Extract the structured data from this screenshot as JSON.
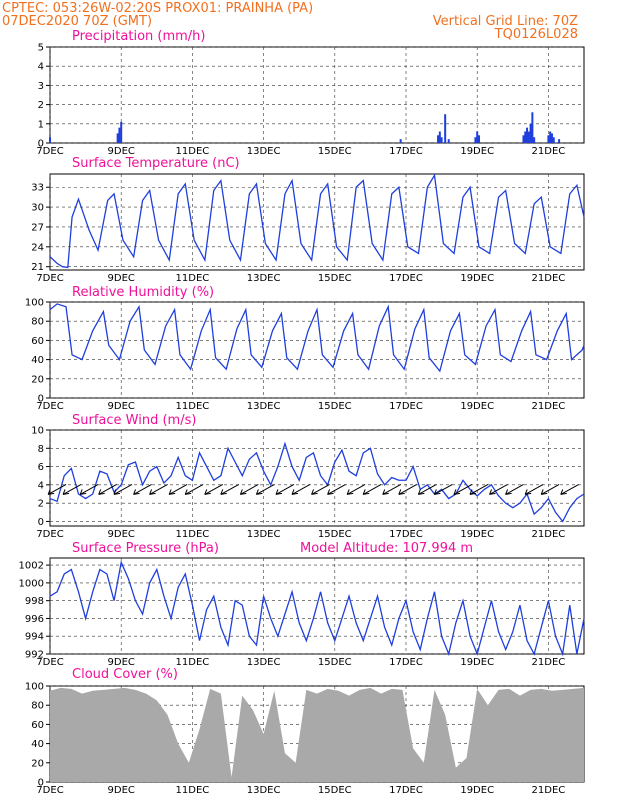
{
  "header": {
    "line1": "CPTEC:   053:26W-02:20S   PROX01: PRAINHA (PA)",
    "line2": "07DEC2020 70Z (GMT)",
    "grid_note": "Vertical Grid Line: 70Z",
    "code": "TQ0126L028"
  },
  "colors": {
    "header": "#f07020",
    "panel_title": "#ee1199",
    "series": "#1f3fdd",
    "cloud": "#a9a9a9",
    "axis": "#000000"
  },
  "x_axis": {
    "day_labels": [
      "7DEC",
      "9DEC",
      "11DEC",
      "13DEC",
      "15DEC",
      "17DEC",
      "19DEC",
      "21DEC"
    ],
    "day_values": [
      7,
      9,
      11,
      13,
      15,
      17,
      19,
      21
    ],
    "range": [
      7,
      22
    ]
  },
  "chart_data": [
    {
      "type": "bar",
      "title": "Precipitation (mm/h)",
      "ylim": [
        0,
        5
      ],
      "yticks": [
        0,
        1,
        2,
        3,
        4,
        5
      ],
      "x": [
        7.0,
        8.9,
        8.95,
        9.0,
        16.85,
        17.9,
        17.95,
        18.0,
        18.1,
        18.2,
        18.95,
        19.0,
        19.05,
        20.3,
        20.35,
        20.4,
        20.45,
        20.5,
        20.55,
        20.6,
        21.0,
        21.05,
        21.1,
        21.15,
        21.3
      ],
      "values": [
        0.3,
        0.5,
        0.8,
        1.1,
        0.2,
        0.4,
        0.6,
        0.3,
        1.5,
        0.2,
        0.3,
        0.6,
        0.4,
        0.4,
        0.6,
        0.8,
        0.6,
        1.0,
        1.6,
        0.3,
        0.4,
        0.6,
        0.5,
        0.3,
        0.2
      ]
    },
    {
      "type": "line",
      "title": "Surface Temperature (nC)",
      "ylim": [
        20.5,
        35
      ],
      "yticks": [
        21,
        24,
        27,
        30,
        33
      ],
      "x": [
        7.0,
        7.2,
        7.35,
        7.5,
        7.62,
        7.8,
        8.1,
        8.35,
        8.62,
        8.8,
        9.05,
        9.35,
        9.6,
        9.8,
        10.05,
        10.35,
        10.6,
        10.8,
        11.05,
        11.35,
        11.6,
        11.8,
        12.05,
        12.35,
        12.6,
        12.8,
        13.05,
        13.35,
        13.6,
        13.8,
        14.05,
        14.35,
        14.6,
        14.8,
        15.05,
        15.35,
        15.6,
        15.8,
        16.05,
        16.35,
        16.6,
        16.8,
        17.05,
        17.35,
        17.6,
        17.8,
        18.05,
        18.35,
        18.6,
        18.8,
        19.05,
        19.35,
        19.6,
        19.8,
        20.05,
        20.35,
        20.6,
        20.8,
        21.05,
        21.35,
        21.6,
        21.8,
        22.0
      ],
      "values": [
        22.5,
        21.5,
        21.0,
        20.9,
        28.5,
        31.2,
        26.5,
        23.5,
        31.0,
        32.0,
        25.0,
        22.5,
        31.0,
        32.5,
        25.0,
        22.0,
        32.0,
        33.5,
        25.0,
        22.0,
        32.5,
        34.0,
        25.0,
        22.0,
        32.0,
        33.5,
        24.5,
        22.0,
        32.0,
        34.0,
        24.5,
        22.0,
        32.0,
        33.5,
        24.0,
        22.0,
        33.0,
        34.0,
        24.5,
        22.0,
        32.0,
        33.0,
        24.0,
        23.0,
        33.0,
        34.8,
        24.5,
        23.0,
        31.5,
        33.0,
        24.0,
        23.0,
        31.5,
        32.5,
        24.5,
        23.0,
        30.5,
        31.5,
        24.0,
        23.0,
        32.0,
        33.3,
        28.5
      ]
    },
    {
      "type": "line",
      "title": "Relative Humidity (%)",
      "ylim": [
        0,
        100
      ],
      "yticks": [
        0,
        20,
        40,
        60,
        80,
        100
      ],
      "x": [
        7.0,
        7.2,
        7.45,
        7.62,
        7.9,
        8.2,
        8.5,
        8.65,
        8.95,
        9.25,
        9.5,
        9.65,
        9.95,
        10.25,
        10.5,
        10.65,
        10.95,
        11.25,
        11.5,
        11.65,
        11.95,
        12.25,
        12.5,
        12.65,
        12.95,
        13.25,
        13.5,
        13.65,
        13.95,
        14.25,
        14.5,
        14.65,
        14.95,
        15.25,
        15.5,
        15.65,
        15.95,
        16.25,
        16.5,
        16.65,
        16.95,
        17.25,
        17.5,
        17.65,
        17.95,
        18.25,
        18.5,
        18.65,
        18.95,
        19.25,
        19.5,
        19.65,
        19.95,
        20.25,
        20.5,
        20.65,
        20.95,
        21.25,
        21.5,
        21.65,
        21.95,
        22.0
      ],
      "values": [
        92,
        98,
        95,
        45,
        40,
        70,
        90,
        55,
        40,
        80,
        95,
        50,
        35,
        75,
        92,
        45,
        30,
        70,
        92,
        42,
        30,
        72,
        92,
        45,
        32,
        70,
        88,
        42,
        30,
        70,
        92,
        45,
        32,
        70,
        88,
        45,
        30,
        75,
        95,
        45,
        30,
        72,
        92,
        42,
        28,
        70,
        88,
        45,
        35,
        75,
        92,
        45,
        38,
        70,
        90,
        45,
        40,
        70,
        88,
        40,
        50,
        55
      ]
    },
    {
      "type": "line",
      "title": "Surface Wind (m/s)",
      "ylim": [
        -0.5,
        10
      ],
      "yticks": [
        0,
        2,
        4,
        6,
        8,
        10
      ],
      "x": [
        7.0,
        7.2,
        7.4,
        7.6,
        7.8,
        8.0,
        8.2,
        8.4,
        8.6,
        8.8,
        9.0,
        9.2,
        9.4,
        9.6,
        9.8,
        10.0,
        10.2,
        10.4,
        10.6,
        10.8,
        11.0,
        11.2,
        11.4,
        11.6,
        11.8,
        12.0,
        12.2,
        12.4,
        12.6,
        12.8,
        13.0,
        13.2,
        13.4,
        13.6,
        13.8,
        14.0,
        14.2,
        14.4,
        14.6,
        14.8,
        15.0,
        15.2,
        15.4,
        15.6,
        15.8,
        16.0,
        16.2,
        16.4,
        16.6,
        16.8,
        17.0,
        17.2,
        17.4,
        17.6,
        17.8,
        18.0,
        18.2,
        18.4,
        18.6,
        18.8,
        19.0,
        19.2,
        19.4,
        19.6,
        19.8,
        20.0,
        20.2,
        20.4,
        20.6,
        20.8,
        21.0,
        21.2,
        21.4,
        21.6,
        21.8,
        22.0
      ],
      "values": [
        2.5,
        2.2,
        5.0,
        5.8,
        3.0,
        2.5,
        3.0,
        5.5,
        5.2,
        3.2,
        4.0,
        6.2,
        6.5,
        4.0,
        5.5,
        6.0,
        4.2,
        5.0,
        7.0,
        5.0,
        4.5,
        7.5,
        6.0,
        4.5,
        5.0,
        8.0,
        6.5,
        5.0,
        6.8,
        7.5,
        5.5,
        4.0,
        6.0,
        8.5,
        6.0,
        4.5,
        7.0,
        7.5,
        5.0,
        4.0,
        6.5,
        7.8,
        5.5,
        5.0,
        7.5,
        8.0,
        5.2,
        4.0,
        4.8,
        4.5,
        4.5,
        6.0,
        3.5,
        4.0,
        3.0,
        3.5,
        2.5,
        3.0,
        4.5,
        3.5,
        2.8,
        3.5,
        4.0,
        2.8,
        2.0,
        1.5,
        2.0,
        3.0,
        0.8,
        1.5,
        2.5,
        1.0,
        0.0,
        1.5,
        2.5,
        3.0
      ],
      "barbs_x": [
        7.2,
        7.62,
        8.1,
        8.62,
        9.05,
        9.6,
        10.05,
        10.6,
        11.05,
        11.6,
        12.05,
        12.6,
        13.05,
        13.6,
        14.05,
        14.6,
        15.05,
        15.6,
        16.05,
        16.6,
        17.05,
        17.6,
        18.05,
        18.6,
        19.05,
        19.6,
        20.05,
        20.6,
        21.05,
        21.6
      ]
    },
    {
      "type": "line",
      "title": "Surface Pressure (hPa)",
      "annotation": "Model Altitude: 107.994  m",
      "ylim": [
        992,
        1002.8
      ],
      "yticks": [
        992,
        994,
        996,
        998,
        1000,
        1002
      ],
      "x": [
        7.0,
        7.2,
        7.4,
        7.6,
        7.8,
        8.0,
        8.2,
        8.4,
        8.6,
        8.8,
        9.0,
        9.2,
        9.4,
        9.6,
        9.8,
        10.0,
        10.2,
        10.4,
        10.6,
        10.8,
        11.0,
        11.2,
        11.4,
        11.6,
        11.8,
        12.0,
        12.2,
        12.4,
        12.6,
        12.8,
        13.0,
        13.2,
        13.4,
        13.6,
        13.8,
        14.0,
        14.2,
        14.4,
        14.6,
        14.8,
        15.0,
        15.2,
        15.4,
        15.6,
        15.8,
        16.0,
        16.2,
        16.4,
        16.6,
        16.8,
        17.0,
        17.2,
        17.4,
        17.6,
        17.8,
        18.0,
        18.2,
        18.4,
        18.6,
        18.8,
        19.0,
        19.2,
        19.4,
        19.6,
        19.8,
        20.0,
        20.2,
        20.4,
        20.6,
        20.8,
        21.0,
        21.2,
        21.4,
        21.6,
        21.8,
        22.0
      ],
      "values": [
        998.5,
        999.0,
        1001.0,
        1001.5,
        999.0,
        996.0,
        999.0,
        1001.5,
        1001.0,
        998.0,
        1002.3,
        1000.5,
        998.0,
        996.5,
        1000.0,
        1001.5,
        998.5,
        996.0,
        999.5,
        1001.0,
        997.5,
        993.5,
        997.0,
        998.5,
        995.0,
        993.0,
        998.0,
        997.5,
        994.0,
        993.0,
        998.5,
        996.0,
        994.0,
        996.5,
        999.0,
        995.5,
        993.5,
        996.0,
        999.0,
        995.5,
        993.5,
        996.0,
        998.5,
        995.5,
        993.5,
        996.0,
        998.5,
        995.0,
        993.0,
        996.0,
        998.0,
        994.5,
        992.5,
        996.0,
        999.0,
        994.0,
        992.0,
        995.5,
        998.0,
        994.0,
        992.0,
        995.0,
        998.0,
        994.5,
        992.5,
        994.5,
        997.5,
        993.5,
        992.0,
        995.0,
        998.0,
        994.0,
        992.0,
        997.5,
        992.0,
        996.0
      ]
    },
    {
      "type": "area",
      "title": "Cloud Cover (%)",
      "ylim": [
        0,
        100
      ],
      "yticks": [
        0,
        20,
        40,
        60,
        80,
        100
      ],
      "x": [
        7.0,
        7.3,
        7.6,
        7.9,
        8.2,
        8.5,
        8.8,
        9.1,
        9.4,
        9.7,
        10.0,
        10.3,
        10.6,
        10.9,
        11.2,
        11.5,
        11.8,
        12.1,
        12.4,
        12.7,
        13.0,
        13.3,
        13.6,
        13.9,
        14.2,
        14.5,
        14.8,
        15.1,
        15.4,
        15.7,
        16.0,
        16.3,
        16.6,
        16.9,
        17.2,
        17.5,
        17.8,
        18.1,
        18.4,
        18.7,
        19.0,
        19.3,
        19.6,
        19.9,
        20.2,
        20.5,
        20.8,
        21.1,
        21.4,
        21.7,
        22.0
      ],
      "values": [
        95,
        98,
        97,
        92,
        95,
        96,
        97,
        98,
        96,
        92,
        85,
        70,
        40,
        20,
        55,
        97,
        92,
        5,
        90,
        75,
        50,
        95,
        30,
        20,
        96,
        92,
        97,
        95,
        90,
        96,
        98,
        92,
        97,
        96,
        35,
        20,
        96,
        70,
        15,
        25,
        97,
        80,
        96,
        97,
        90,
        96,
        97,
        95,
        96,
        97,
        98
      ]
    }
  ]
}
